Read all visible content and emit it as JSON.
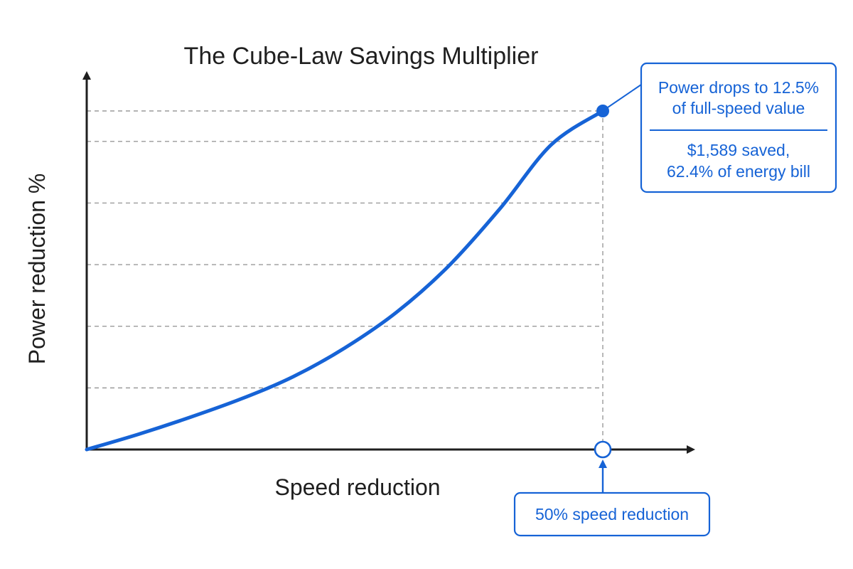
{
  "chart_data": {
    "type": "line",
    "title": "The Cube-Law Savings Multiplier",
    "xlabel": "Speed reduction",
    "ylabel": "Power reduction %",
    "xlim": [
      0,
      1
    ],
    "ylim": [
      0,
      1
    ],
    "grid": true,
    "series": [
      {
        "x": [
          0,
          0.1,
          0.2,
          0.3,
          0.4,
          0.5,
          0.6,
          0.7,
          0.8,
          0.9,
          1.0
        ],
        "y": [
          0,
          0.045,
          0.095,
          0.15,
          0.215,
          0.3,
          0.405,
          0.54,
          0.71,
          0.9,
          1.0
        ]
      }
    ],
    "highlight": {
      "x": 1.0,
      "y": 1.0
    },
    "annotations": {
      "power_line1": "Power drops to 12.5%",
      "power_line2": "of full-speed value",
      "savings_line1": "$1,589 saved,",
      "savings_line2": "62.4% of energy bill",
      "speed_label": "50% speed reduction"
    },
    "colors": {
      "accent": "#1663d6",
      "axis": "#1f1f1f",
      "grid": "#9a9a9a"
    }
  }
}
